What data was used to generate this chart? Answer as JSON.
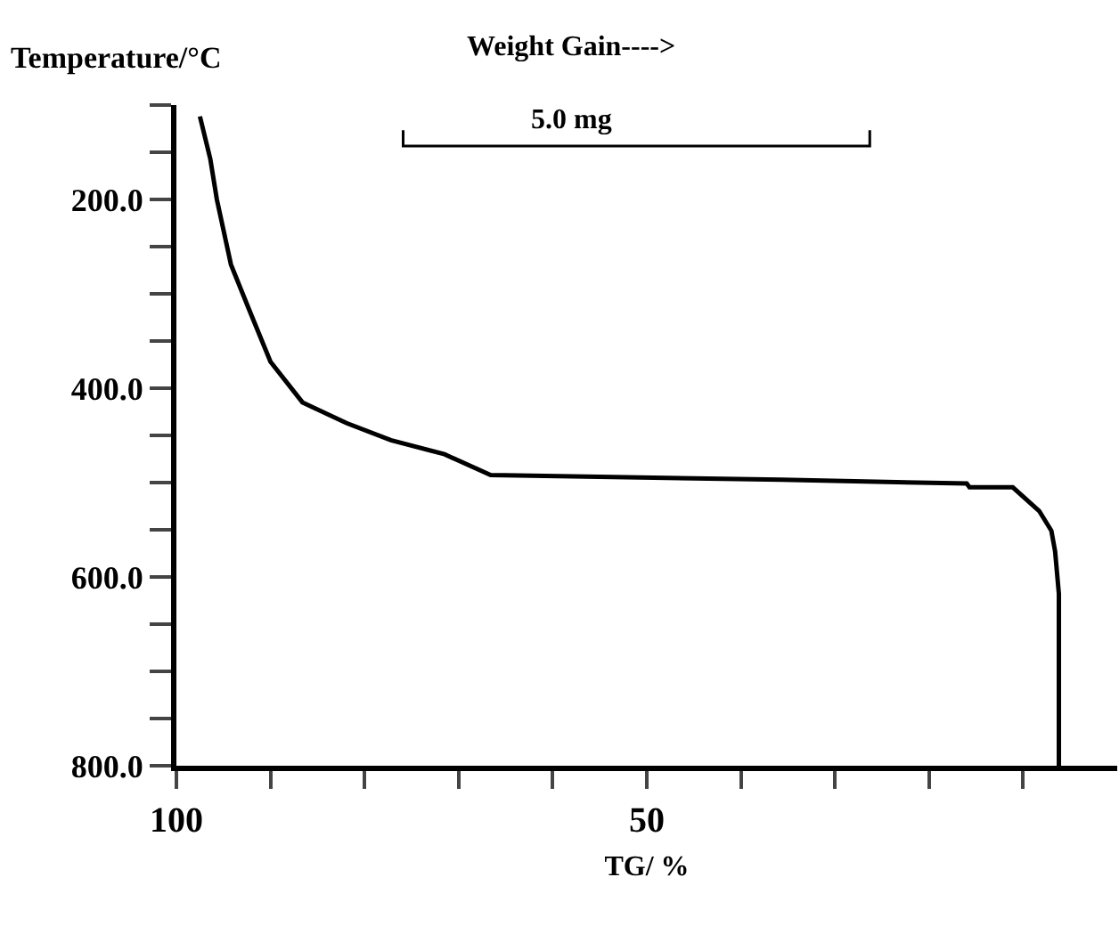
{
  "chart_data": {
    "type": "line",
    "xlabel": "TG/ %",
    "ylabel": "Temperature/°C",
    "annotations": [
      "Weight Gain---->",
      "5.0 mg"
    ],
    "x": [
      97.5,
      96.4,
      95.7,
      94.2,
      92.3,
      90.0,
      86.6,
      81.9,
      77.2,
      71.5,
      66.6,
      35.7,
      16.0,
      15.7,
      11.1,
      8.3,
      7.0,
      6.6,
      6.2,
      6.2
    ],
    "series": [
      {
        "color": "#000000",
        "values": [
          112,
          157,
          200,
          269,
          316,
          372,
          415,
          437,
          455,
          470,
          492,
          497,
          501,
          505,
          505,
          530,
          551,
          573,
          618,
          800
        ]
      }
    ],
    "xlim": [
      100,
      0
    ],
    "xticks": [
      100,
      {
        "value": 90,
        "label": null
      },
      {
        "value": 80,
        "label": null
      },
      {
        "value": 70,
        "label": null
      },
      {
        "value": 60,
        "label": null
      },
      50,
      {
        "value": 40,
        "label": null
      },
      {
        "value": 30,
        "label": null
      },
      {
        "value": 20,
        "label": null
      },
      {
        "value": 10,
        "label": null
      }
    ],
    "ylim": [
      800,
      100
    ],
    "yticks": [
      {
        "value": 100,
        "label": null
      },
      {
        "value": 150,
        "label": null
      },
      {
        "value": 200,
        "label": "200.0"
      },
      {
        "value": 250,
        "label": null
      },
      {
        "value": 300,
        "label": null
      },
      {
        "value": 350,
        "label": null
      },
      {
        "value": 400,
        "label": "400.0"
      },
      {
        "value": 450,
        "label": null
      },
      {
        "value": 500,
        "label": null
      },
      {
        "value": 550,
        "label": null
      },
      {
        "value": 600,
        "label": "600.0"
      },
      {
        "value": 650,
        "label": null
      },
      {
        "value": 700,
        "label": null
      },
      {
        "value": 750,
        "label": null
      },
      {
        "value": 800,
        "label": "800.0"
      }
    ],
    "grid": false,
    "marker": "none",
    "line_style": "solid"
  }
}
